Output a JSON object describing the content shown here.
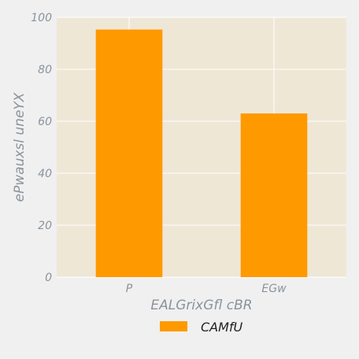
{
  "chart_data": {
    "type": "bar",
    "categories": [
      "P",
      "EGw"
    ],
    "series": [
      {
        "name": "CAMfU",
        "values": [
          95.3,
          63.0
        ]
      }
    ],
    "xlabel": "EALGrixGfl cBR",
    "ylabel": "ePwauxsl uneYX",
    "ylim": [
      0,
      100
    ],
    "yticks": [
      0,
      20,
      40,
      60,
      80,
      100
    ],
    "grid": true,
    "legend_position": "bottom-center"
  },
  "colors": {
    "background": "#f0f0f0",
    "plot_background": "#efe7d6",
    "grid": "#ffffff",
    "bar": "#ff9900",
    "tick_text": "#8a939b"
  }
}
